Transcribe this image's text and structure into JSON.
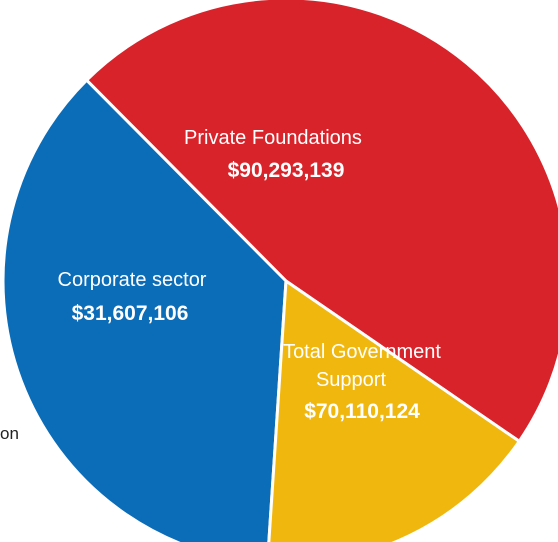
{
  "chart_data": {
    "type": "pie",
    "title": "",
    "slices": [
      {
        "name": "Private Foundations",
        "value_label": "$90,293,139",
        "value": 90293139,
        "color": "#d9232a"
      },
      {
        "name": "Total Government Support",
        "value_label": "$70,110,124",
        "value": 70110124,
        "color": "#0b6cb8"
      },
      {
        "name": "Corporate sector",
        "value_label": "$31,607,106",
        "value": 31607106,
        "color": "#f0b70f"
      }
    ]
  },
  "fragments": {
    "cut_off_text": "on"
  }
}
